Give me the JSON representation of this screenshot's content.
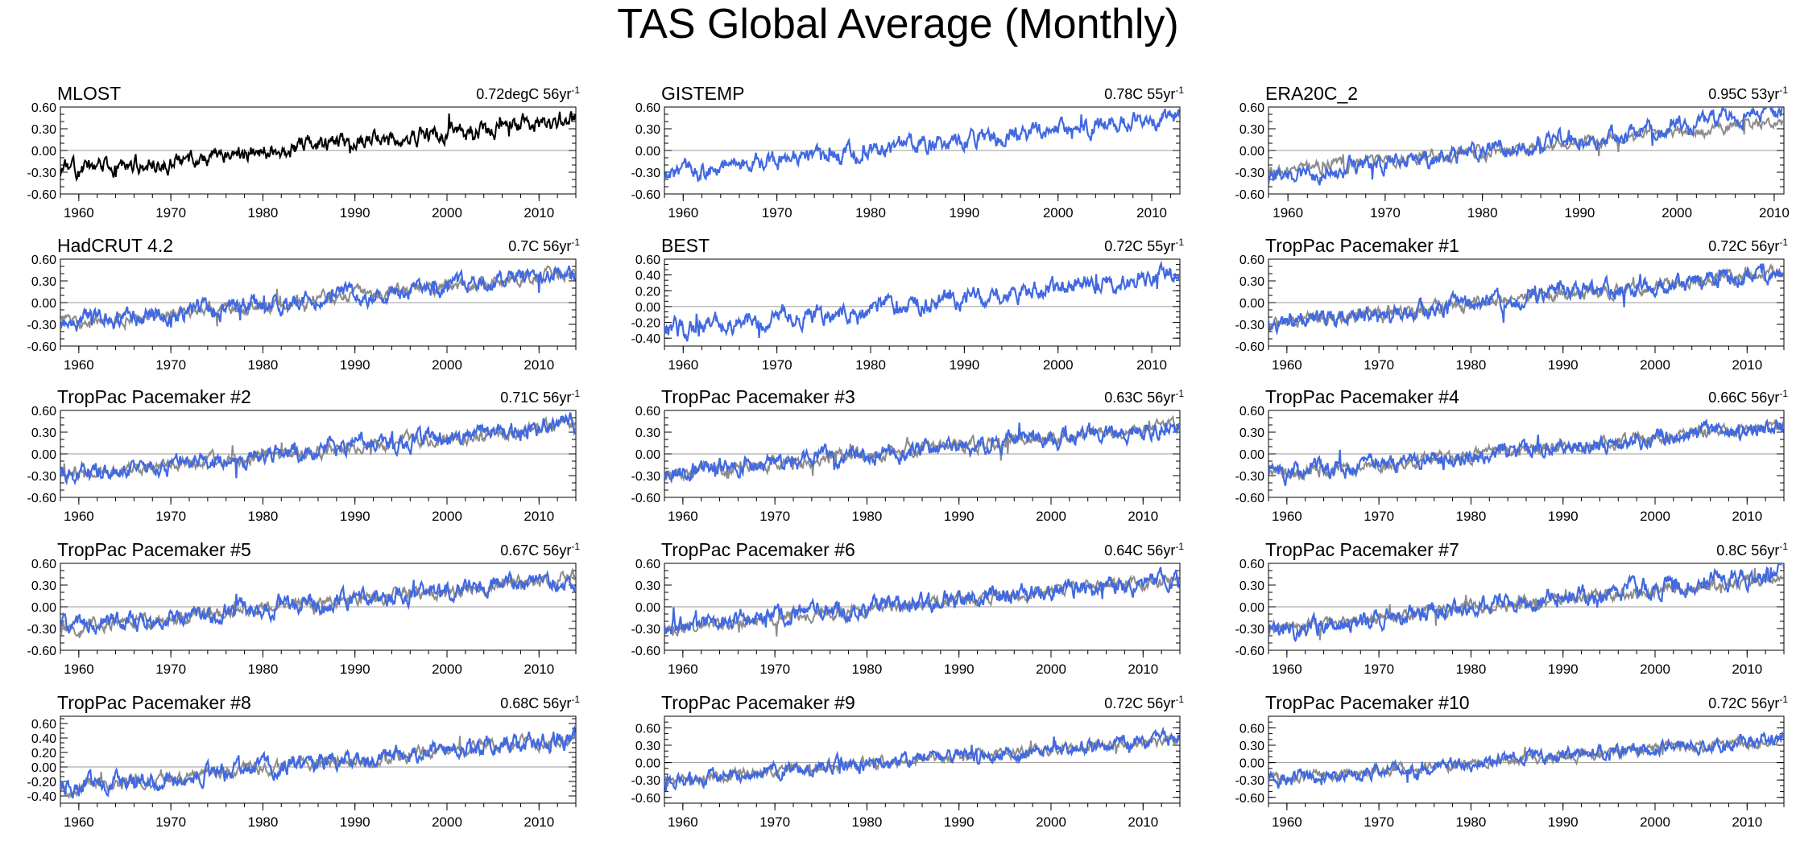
{
  "page_title": "TAS Global Average (Monthly)",
  "colors": {
    "observed": "#000000",
    "model": "#4169e1",
    "reference": "#8c8c8c",
    "zero_line": "#999999"
  },
  "chart_data": [
    {
      "type": "line",
      "title": "MLOST",
      "trend_value": "0.72degC 56yr",
      "trend_exp": "-1",
      "series_style": "black",
      "ylim": [
        -0.6,
        0.6
      ],
      "yticks": [
        "0.60",
        "0.30",
        "0.00",
        "-0.30",
        "-0.60"
      ],
      "xlim": [
        1958,
        2014
      ],
      "xticks": [
        "1960",
        "1970",
        "1980",
        "1990",
        "2000",
        "2010"
      ],
      "seed": 11,
      "trend_total": 0.72
    },
    {
      "type": "line",
      "title": "GISTEMP",
      "trend_value": "0.78C 55yr",
      "trend_exp": "-1",
      "series_style": "blue",
      "ylim": [
        -0.6,
        0.6
      ],
      "yticks": [
        "0.60",
        "0.30",
        "0.00",
        "-0.30",
        "-0.60"
      ],
      "xlim": [
        1958,
        2013
      ],
      "xticks": [
        "1960",
        "1970",
        "1980",
        "1990",
        "2000",
        "2010"
      ],
      "seed": 23,
      "trend_total": 0.78
    },
    {
      "type": "line",
      "title": "ERA20C_2",
      "trend_value": "0.95C 53yr",
      "trend_exp": "-1",
      "series_style": "blue+gray",
      "ylim": [
        -0.6,
        0.6
      ],
      "yticks": [
        "0.60",
        "0.30",
        "0.00",
        "-0.30",
        "-0.60"
      ],
      "xlim": [
        1958,
        2011
      ],
      "xticks": [
        "1960",
        "1970",
        "1980",
        "1990",
        "2000",
        "2010"
      ],
      "seed": 37,
      "trend_total": 0.95
    },
    {
      "type": "line",
      "title": "HadCRUT 4.2",
      "trend_value": "0.7C 56yr",
      "trend_exp": "-1",
      "series_style": "blue+gray",
      "ylim": [
        -0.6,
        0.6
      ],
      "yticks": [
        "0.60",
        "0.30",
        "0.00",
        "-0.30",
        "-0.60"
      ],
      "xlim": [
        1958,
        2014
      ],
      "xticks": [
        "1960",
        "1970",
        "1980",
        "1990",
        "2000",
        "2010"
      ],
      "seed": 41,
      "trend_total": 0.7
    },
    {
      "type": "line",
      "title": "BEST",
      "trend_value": "0.72C 55yr",
      "trend_exp": "-1",
      "series_style": "blue",
      "ylim": [
        -0.5,
        0.6
      ],
      "yticks": [
        "0.60",
        "0.40",
        "0.20",
        "0.00",
        "-0.20",
        "-0.40"
      ],
      "xlim": [
        1958,
        2013
      ],
      "xticks": [
        "1960",
        "1970",
        "1980",
        "1990",
        "2000",
        "2010"
      ],
      "seed": 53,
      "trend_total": 0.72
    },
    {
      "type": "line",
      "title": "TropPac Pacemaker #1",
      "trend_value": "0.72C 56yr",
      "trend_exp": "-1",
      "series_style": "blue+gray",
      "ylim": [
        -0.6,
        0.6
      ],
      "yticks": [
        "0.60",
        "0.30",
        "0.00",
        "-0.30",
        "-0.60"
      ],
      "xlim": [
        1958,
        2014
      ],
      "xticks": [
        "1960",
        "1970",
        "1980",
        "1990",
        "2000",
        "2010"
      ],
      "seed": 61,
      "trend_total": 0.72
    },
    {
      "type": "line",
      "title": "TropPac Pacemaker #2",
      "trend_value": "0.71C 56yr",
      "trend_exp": "-1",
      "series_style": "blue+gray",
      "ylim": [
        -0.6,
        0.6
      ],
      "yticks": [
        "0.60",
        "0.30",
        "0.00",
        "-0.30",
        "-0.60"
      ],
      "xlim": [
        1958,
        2014
      ],
      "xticks": [
        "1960",
        "1970",
        "1980",
        "1990",
        "2000",
        "2010"
      ],
      "seed": 71,
      "trend_total": 0.71
    },
    {
      "type": "line",
      "title": "TropPac Pacemaker #3",
      "trend_value": "0.63C 56yr",
      "trend_exp": "-1",
      "series_style": "blue+gray",
      "ylim": [
        -0.6,
        0.6
      ],
      "yticks": [
        "0.60",
        "0.30",
        "0.00",
        "-0.30",
        "-0.60"
      ],
      "xlim": [
        1958,
        2014
      ],
      "xticks": [
        "1960",
        "1970",
        "1980",
        "1990",
        "2000",
        "2010"
      ],
      "seed": 83,
      "trend_total": 0.63
    },
    {
      "type": "line",
      "title": "TropPac Pacemaker #4",
      "trend_value": "0.66C 56yr",
      "trend_exp": "-1",
      "series_style": "blue+gray",
      "ylim": [
        -0.6,
        0.6
      ],
      "yticks": [
        "0.60",
        "0.30",
        "0.00",
        "-0.30",
        "-0.60"
      ],
      "xlim": [
        1958,
        2014
      ],
      "xticks": [
        "1960",
        "1970",
        "1980",
        "1990",
        "2000",
        "2010"
      ],
      "seed": 97,
      "trend_total": 0.66
    },
    {
      "type": "line",
      "title": "TropPac Pacemaker #5",
      "trend_value": "0.67C 56yr",
      "trend_exp": "-1",
      "series_style": "blue+gray",
      "ylim": [
        -0.6,
        0.6
      ],
      "yticks": [
        "0.60",
        "0.30",
        "0.00",
        "-0.30",
        "-0.60"
      ],
      "xlim": [
        1958,
        2014
      ],
      "xticks": [
        "1960",
        "1970",
        "1980",
        "1990",
        "2000",
        "2010"
      ],
      "seed": 101,
      "trend_total": 0.67
    },
    {
      "type": "line",
      "title": "TropPac Pacemaker #6",
      "trend_value": "0.64C 56yr",
      "trend_exp": "-1",
      "series_style": "blue+gray",
      "ylim": [
        -0.6,
        0.6
      ],
      "yticks": [
        "0.60",
        "0.30",
        "0.00",
        "-0.30",
        "-0.60"
      ],
      "xlim": [
        1958,
        2014
      ],
      "xticks": [
        "1960",
        "1970",
        "1980",
        "1990",
        "2000",
        "2010"
      ],
      "seed": 113,
      "trend_total": 0.64
    },
    {
      "type": "line",
      "title": "TropPac Pacemaker #7",
      "trend_value": "0.8C 56yr",
      "trend_exp": "-1",
      "series_style": "blue+gray",
      "ylim": [
        -0.6,
        0.6
      ],
      "yticks": [
        "0.60",
        "0.30",
        "0.00",
        "-0.30",
        "-0.60"
      ],
      "xlim": [
        1958,
        2014
      ],
      "xticks": [
        "1960",
        "1970",
        "1980",
        "1990",
        "2000",
        "2010"
      ],
      "seed": 127,
      "trend_total": 0.8
    },
    {
      "type": "line",
      "title": "TropPac Pacemaker #8",
      "trend_value": "0.68C 56yr",
      "trend_exp": "-1",
      "series_style": "blue+gray",
      "ylim": [
        -0.5,
        0.7
      ],
      "yticks": [
        "0.60",
        "0.40",
        "0.20",
        "0.00",
        "-0.20",
        "-0.40"
      ],
      "xlim": [
        1958,
        2014
      ],
      "xticks": [
        "1960",
        "1970",
        "1980",
        "1990",
        "2000",
        "2010"
      ],
      "seed": 131,
      "trend_total": 0.68
    },
    {
      "type": "line",
      "title": "TropPac Pacemaker #9",
      "trend_value": "0.72C 56yr",
      "trend_exp": "-1",
      "series_style": "blue+gray",
      "ylim": [
        -0.7,
        0.8
      ],
      "yticks": [
        "0.60",
        "0.30",
        "0.00",
        "-0.30",
        "-0.60"
      ],
      "xlim": [
        1958,
        2014
      ],
      "xticks": [
        "1960",
        "1970",
        "1980",
        "1990",
        "2000",
        "2010"
      ],
      "seed": 139,
      "trend_total": 0.72
    },
    {
      "type": "line",
      "title": "TropPac Pacemaker #10",
      "trend_value": "0.72C 56yr",
      "trend_exp": "-1",
      "series_style": "blue+gray",
      "ylim": [
        -0.7,
        0.8
      ],
      "yticks": [
        "0.60",
        "0.30",
        "0.00",
        "-0.30",
        "-0.60"
      ],
      "xlim": [
        1958,
        2014
      ],
      "xticks": [
        "1960",
        "1970",
        "1980",
        "1990",
        "2000",
        "2010"
      ],
      "seed": 149,
      "trend_total": 0.72
    }
  ]
}
